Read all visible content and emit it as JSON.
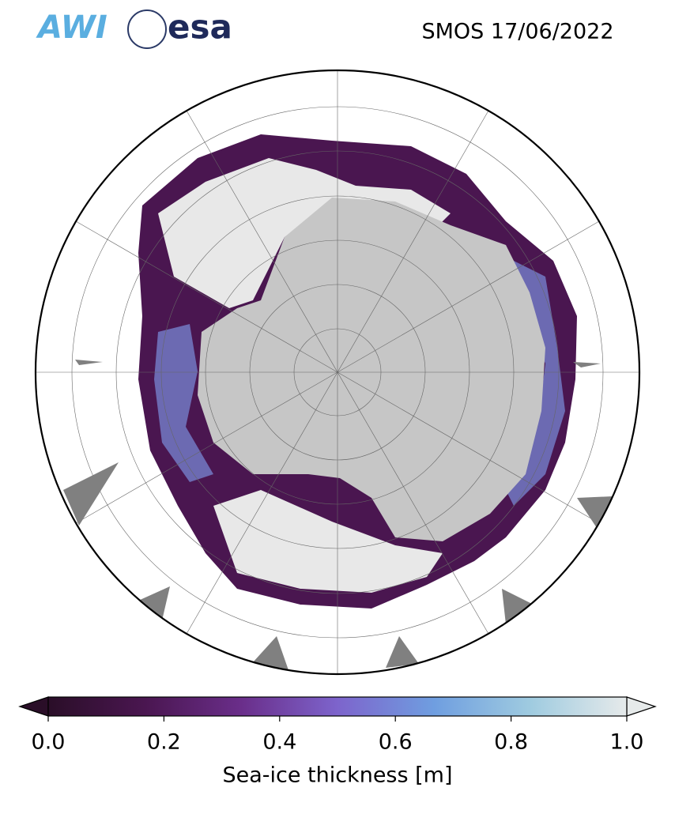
{
  "header": {
    "logos": [
      "AWI",
      "esa"
    ],
    "title": "SMOS 17/06/2022"
  },
  "colorbar": {
    "label": "Sea-ice thickness [m]",
    "lim": [
      0,
      1
    ],
    "ticks": [
      {
        "value": 0,
        "label": "0.0"
      },
      {
        "value": 0.2,
        "label": "0.2"
      },
      {
        "value": 0.4,
        "label": "0.4"
      },
      {
        "value": 0.6,
        "label": "0.6"
      },
      {
        "value": 0.8,
        "label": "0.8"
      },
      {
        "value": 1,
        "label": "1.0"
      }
    ],
    "colors": [
      "#2a0e28",
      "#4a1650",
      "#6a2e8a",
      "#7d64cc",
      "#6f9ee0",
      "#9fcbe0",
      "#e6eaea"
    ]
  }
}
